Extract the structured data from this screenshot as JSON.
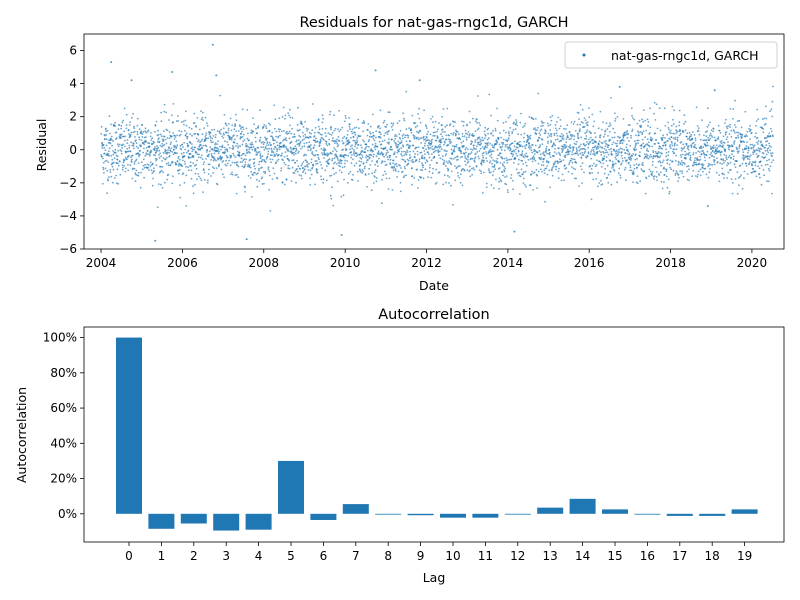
{
  "colors": {
    "series": "#1f77b4"
  },
  "chart_data": [
    {
      "type": "scatter",
      "title": "Residuals for nat-gas-rngc1d, GARCH",
      "xlabel": "Date",
      "ylabel": "Residual",
      "xlim": [
        "2003-08-01",
        "2020-10-15"
      ],
      "ylim": [
        -6,
        7
      ],
      "x_ticks": [
        "2004",
        "2006",
        "2008",
        "2010",
        "2012",
        "2014",
        "2016",
        "2018",
        "2020"
      ],
      "y_ticks": [
        "−6",
        "−4",
        "−2",
        "0",
        "2",
        "4",
        "6"
      ],
      "legend": {
        "placement": "top-right",
        "entries": [
          "nat-gas-rngc1d, GARCH"
        ]
      },
      "grid": false,
      "series": [
        {
          "name": "nat-gas-rngc1d, GARCH",
          "date_range": [
            "2004-01-02",
            "2020-07-10"
          ],
          "typical_std": 1.0,
          "outliers": [
            {
              "x": "2004-04-01",
              "y": 5.3
            },
            {
              "x": "2004-10-01",
              "y": 4.2
            },
            {
              "x": "2005-05-01",
              "y": -5.5
            },
            {
              "x": "2005-10-01",
              "y": 4.7
            },
            {
              "x": "2006-10-01",
              "y": 6.35
            },
            {
              "x": "2006-11-01",
              "y": 4.5
            },
            {
              "x": "2007-08-01",
              "y": -5.4
            },
            {
              "x": "2009-12-01",
              "y": -5.15
            },
            {
              "x": "2010-10-01",
              "y": 4.8
            },
            {
              "x": "2011-11-01",
              "y": 4.2
            },
            {
              "x": "2014-03-01",
              "y": -4.95
            },
            {
              "x": "2016-10-01",
              "y": 3.8
            },
            {
              "x": "2018-12-01",
              "y": -3.4
            },
            {
              "x": "2019-02-01",
              "y": 3.6
            }
          ]
        }
      ]
    },
    {
      "type": "bar",
      "title": "Autocorrelation",
      "xlabel": "Lag",
      "ylabel": "Autocorrelation",
      "categories": [
        "0",
        "1",
        "2",
        "3",
        "4",
        "5",
        "6",
        "7",
        "8",
        "9",
        "10",
        "11",
        "12",
        "13",
        "14",
        "15",
        "16",
        "17",
        "18",
        "19"
      ],
      "values": [
        1.0,
        -0.085,
        -0.055,
        -0.095,
        -0.09,
        0.3,
        -0.035,
        0.055,
        0.0,
        -0.008,
        -0.022,
        -0.022,
        0.0,
        0.035,
        0.085,
        0.025,
        0.0,
        -0.012,
        -0.012,
        0.025
      ],
      "ylim": [
        -0.16,
        1.06
      ],
      "y_ticks": [
        "0%",
        "20%",
        "40%",
        "60%",
        "80%",
        "100%"
      ],
      "grid": false
    }
  ]
}
